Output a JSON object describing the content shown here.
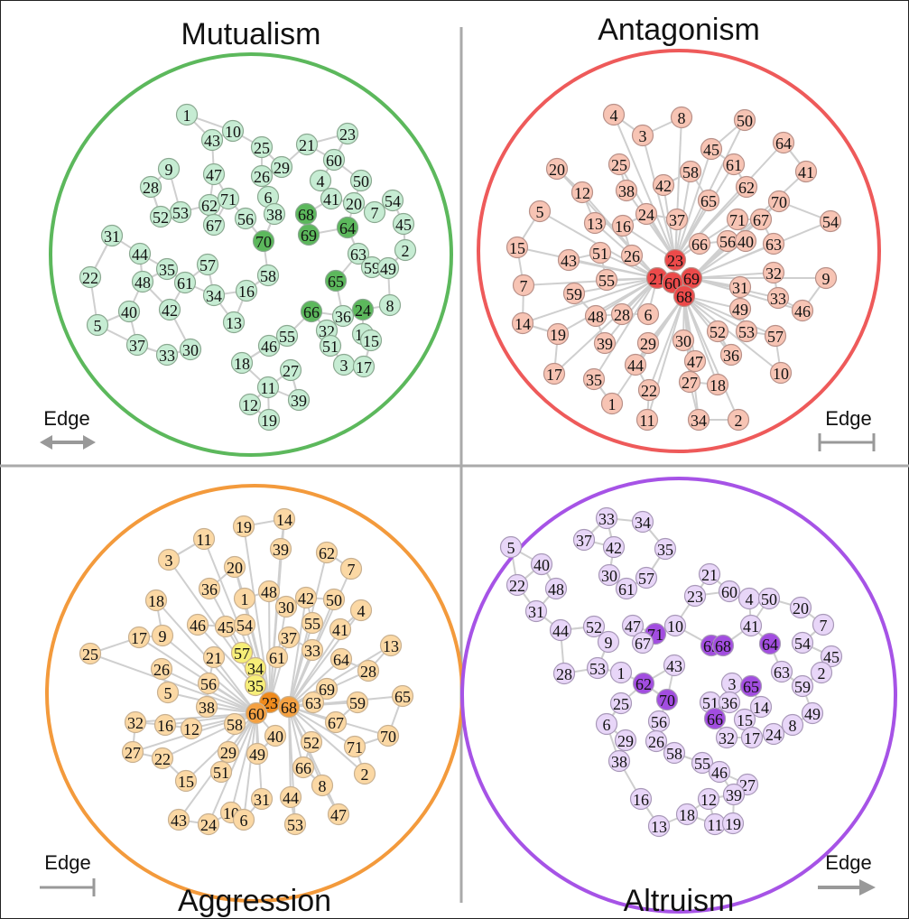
{
  "panels": [
    {
      "title": "Mutualism",
      "legend": "Edge",
      "nodes": [
        "1",
        "43",
        "10",
        "9",
        "28",
        "47",
        "25",
        "26",
        "29",
        "21",
        "23",
        "60",
        "4",
        "50",
        "41",
        "20",
        "7",
        "54",
        "45",
        "6",
        "62",
        "71",
        "53",
        "52",
        "67",
        "56",
        "38",
        "68",
        "69",
        "64",
        "70",
        "31",
        "44",
        "57",
        "35",
        "61",
        "48",
        "22",
        "63",
        "2",
        "59",
        "49",
        "58",
        "16",
        "65",
        "34",
        "42",
        "40",
        "5",
        "13",
        "66",
        "24",
        "8",
        "36",
        "32",
        "14",
        "15",
        "55",
        "46",
        "37",
        "33",
        "30",
        "51",
        "3",
        "17",
        "18",
        "27",
        "11",
        "39",
        "12",
        "19"
      ]
    },
    {
      "title": "Antagonism",
      "legend": "Edge",
      "nodes": [
        "4",
        "8",
        "3",
        "50",
        "45",
        "64",
        "25",
        "61",
        "20",
        "41",
        "38",
        "42",
        "58",
        "62",
        "12",
        "70",
        "24",
        "37",
        "65",
        "71",
        "67",
        "16",
        "13",
        "5",
        "54",
        "66",
        "56",
        "40",
        "63",
        "51",
        "26",
        "15",
        "43",
        "23",
        "21",
        "69",
        "60",
        "68",
        "32",
        "9",
        "55",
        "7",
        "31",
        "59",
        "33",
        "46",
        "48",
        "28",
        "6",
        "49",
        "14",
        "19",
        "39",
        "52",
        "53",
        "57",
        "29",
        "30",
        "47",
        "36",
        "44",
        "17",
        "35",
        "10",
        "27",
        "18",
        "22",
        "1",
        "11",
        "34",
        "2"
      ]
    },
    {
      "title": "Aggression",
      "legend": "Edge",
      "nodes": [
        "14",
        "19",
        "11",
        "39",
        "62",
        "3",
        "7",
        "20",
        "36",
        "48",
        "1",
        "30",
        "42",
        "50",
        "18",
        "4",
        "55",
        "45",
        "54",
        "46",
        "41",
        "17",
        "9",
        "37",
        "13",
        "57",
        "21",
        "61",
        "33",
        "64",
        "25",
        "26",
        "34",
        "28",
        "56",
        "35",
        "5",
        "69",
        "65",
        "23",
        "68",
        "63",
        "59",
        "38",
        "60",
        "12",
        "32",
        "16",
        "58",
        "67",
        "40",
        "52",
        "70",
        "27",
        "22",
        "29",
        "49",
        "71",
        "66",
        "51",
        "2",
        "15",
        "8",
        "31",
        "44",
        "47",
        "43",
        "24",
        "10",
        "6",
        "53"
      ]
    },
    {
      "title": "Altruism",
      "legend": "Edge",
      "nodes": [
        "33",
        "34",
        "37",
        "42",
        "35",
        "5",
        "40",
        "30",
        "61",
        "57",
        "48",
        "22",
        "21",
        "23",
        "60",
        "4",
        "50",
        "20",
        "31",
        "7",
        "44",
        "52",
        "9",
        "47",
        "71",
        "10",
        "67",
        "69",
        "68",
        "64",
        "41",
        "54",
        "45",
        "28",
        "53",
        "43",
        "1",
        "62",
        "70",
        "3",
        "65",
        "63",
        "2",
        "59",
        "25",
        "6",
        "51",
        "36",
        "14",
        "15",
        "66",
        "49",
        "56",
        "8",
        "24",
        "17",
        "32",
        "29",
        "26",
        "58",
        "38",
        "55",
        "46",
        "27",
        "39",
        "16",
        "12",
        "18",
        "13",
        "11",
        "19"
      ]
    }
  ]
}
